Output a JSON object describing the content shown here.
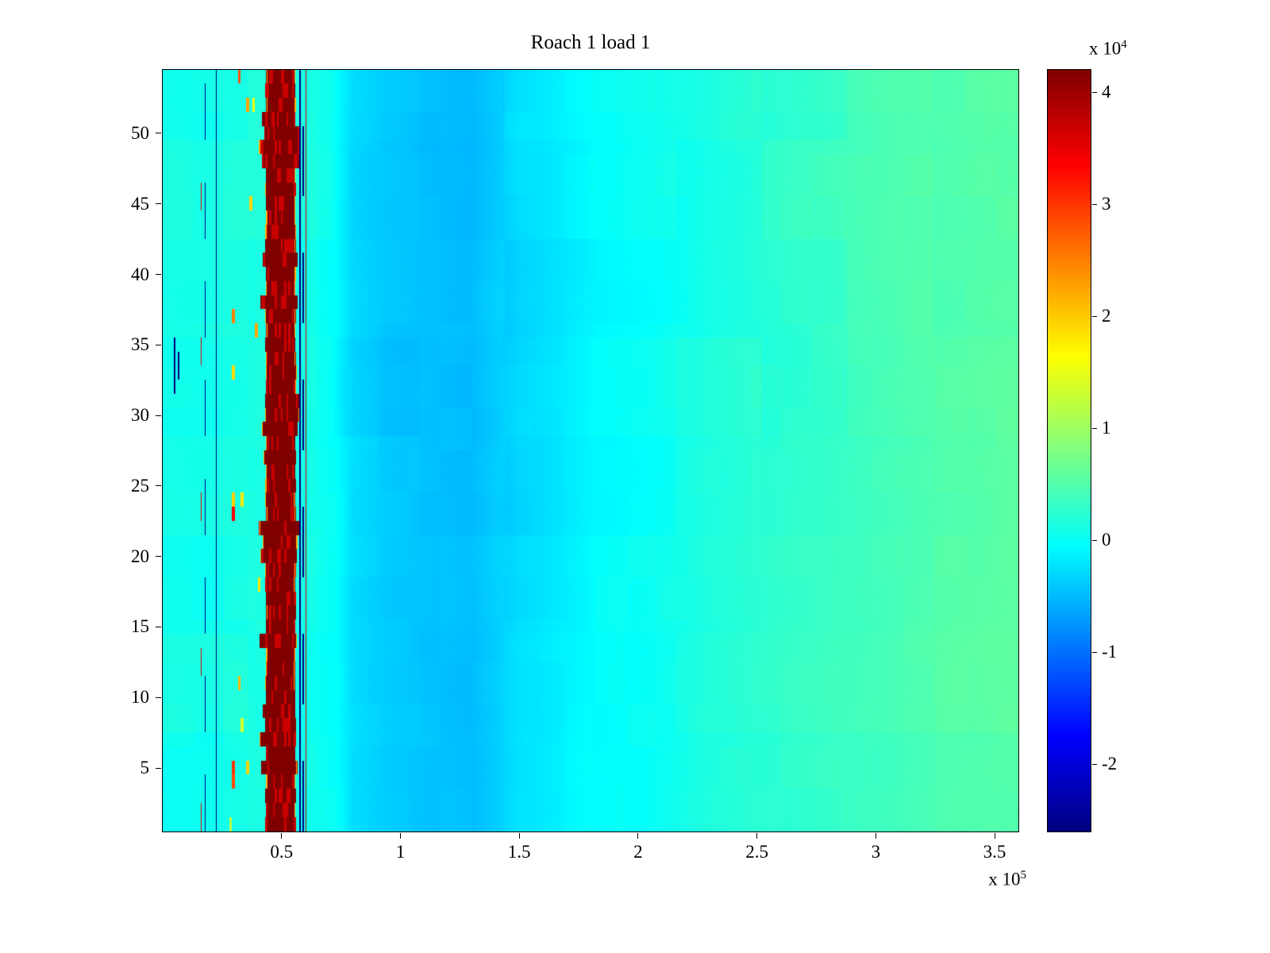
{
  "chart_data": {
    "type": "heatmap",
    "title": "Roach 1 load 1",
    "xlabel": "",
    "ylabel": "",
    "x_multiplier": {
      "base": "x 10",
      "exp": "5"
    },
    "xlim_1e5": [
      0,
      3.6
    ],
    "ylim_rows": [
      0.5,
      54.5
    ],
    "n_rows": 54,
    "xtick_values_1e5": [
      0.5,
      1,
      1.5,
      2,
      2.5,
      3,
      3.5
    ],
    "xtick_labels": [
      "0.5",
      "1",
      "1.5",
      "2",
      "2.5",
      "3",
      "3.5"
    ],
    "ytick_values": [
      5,
      10,
      15,
      20,
      25,
      30,
      35,
      40,
      45,
      50
    ],
    "ytick_labels": [
      "5",
      "10",
      "15",
      "20",
      "25",
      "30",
      "35",
      "40",
      "45",
      "50"
    ],
    "grid": false,
    "legend": false,
    "colorbar": {
      "position": "right",
      "multiplier": {
        "base": "x 10",
        "exp": "4"
      },
      "tick_values_1e4": [
        4,
        3,
        2,
        1,
        0,
        -1,
        -2
      ],
      "tick_labels": [
        "4",
        "3",
        "2",
        "1",
        "0",
        "-1",
        "-2"
      ],
      "caxis_1e4": [
        -2.6,
        4.2
      ],
      "colormap": "jet"
    },
    "background_profile_1e5_1e4": [
      [
        0.0,
        0.1
      ],
      [
        0.17,
        0.08
      ],
      [
        0.28,
        0.13
      ],
      [
        0.43,
        0.15
      ],
      [
        0.62,
        0.1
      ],
      [
        0.72,
        0.0
      ],
      [
        0.8,
        -0.3
      ],
      [
        0.95,
        -0.42
      ],
      [
        1.3,
        -0.5
      ],
      [
        1.5,
        -0.28
      ],
      [
        1.65,
        -0.18
      ],
      [
        1.82,
        -0.06
      ],
      [
        2.1,
        0.02
      ],
      [
        2.3,
        0.14
      ],
      [
        2.6,
        0.26
      ],
      [
        2.9,
        0.36
      ],
      [
        3.2,
        0.46
      ],
      [
        3.6,
        0.55
      ]
    ],
    "features": {
      "red_band": {
        "x0": 0.436,
        "x1": 0.556,
        "value": 4.2,
        "alt_value": 3.7,
        "edge_max_jitter": 0.032,
        "widen_prob": 0.4,
        "yellow_edge_value": 2.2
      },
      "lines": [
        {
          "x": 0.163,
          "width": 0.004,
          "value": 3.6,
          "dash_on": 2,
          "dash_off": 9
        },
        {
          "x": 0.178,
          "width": 0.005,
          "value": -2.6,
          "dash_on": 4,
          "dash_off": 3
        },
        {
          "x": 0.225,
          "width": 0.005,
          "value": -2.6,
          "dash_on": 1,
          "dash_off": 0
        },
        {
          "x": 0.578,
          "width": 0.004,
          "value": -2.6,
          "dash_on": 1,
          "dash_off": 0
        },
        {
          "x": 0.591,
          "width": 0.004,
          "value": -2.6,
          "dash_on": 5,
          "dash_off": 4
        },
        {
          "x": 0.603,
          "width": 0.005,
          "value": 3.8,
          "dash_on": 1,
          "dash_off": 0
        }
      ],
      "speckle_region": {
        "x0": 0.28,
        "x1": 0.41,
        "cell_width": 0.012,
        "probability": 0.03,
        "value_min": 1.2,
        "value_max": 3.4
      },
      "left_marks": [
        {
          "x": 0.049,
          "width": 0.006,
          "rows": [
            32,
            35
          ],
          "value": -2.6
        },
        {
          "x": 0.066,
          "width": 0.005,
          "rows": [
            33,
            34
          ],
          "value": -2.6
        }
      ]
    },
    "noise": {
      "block1": {
        "x_size": 0.36,
        "row_size": 7,
        "amplitude": 0.1
      },
      "block2": {
        "x_size": 0.13,
        "row_size": 3,
        "amplitude": 0.05
      },
      "fine_amplitude": 0.03
    }
  }
}
